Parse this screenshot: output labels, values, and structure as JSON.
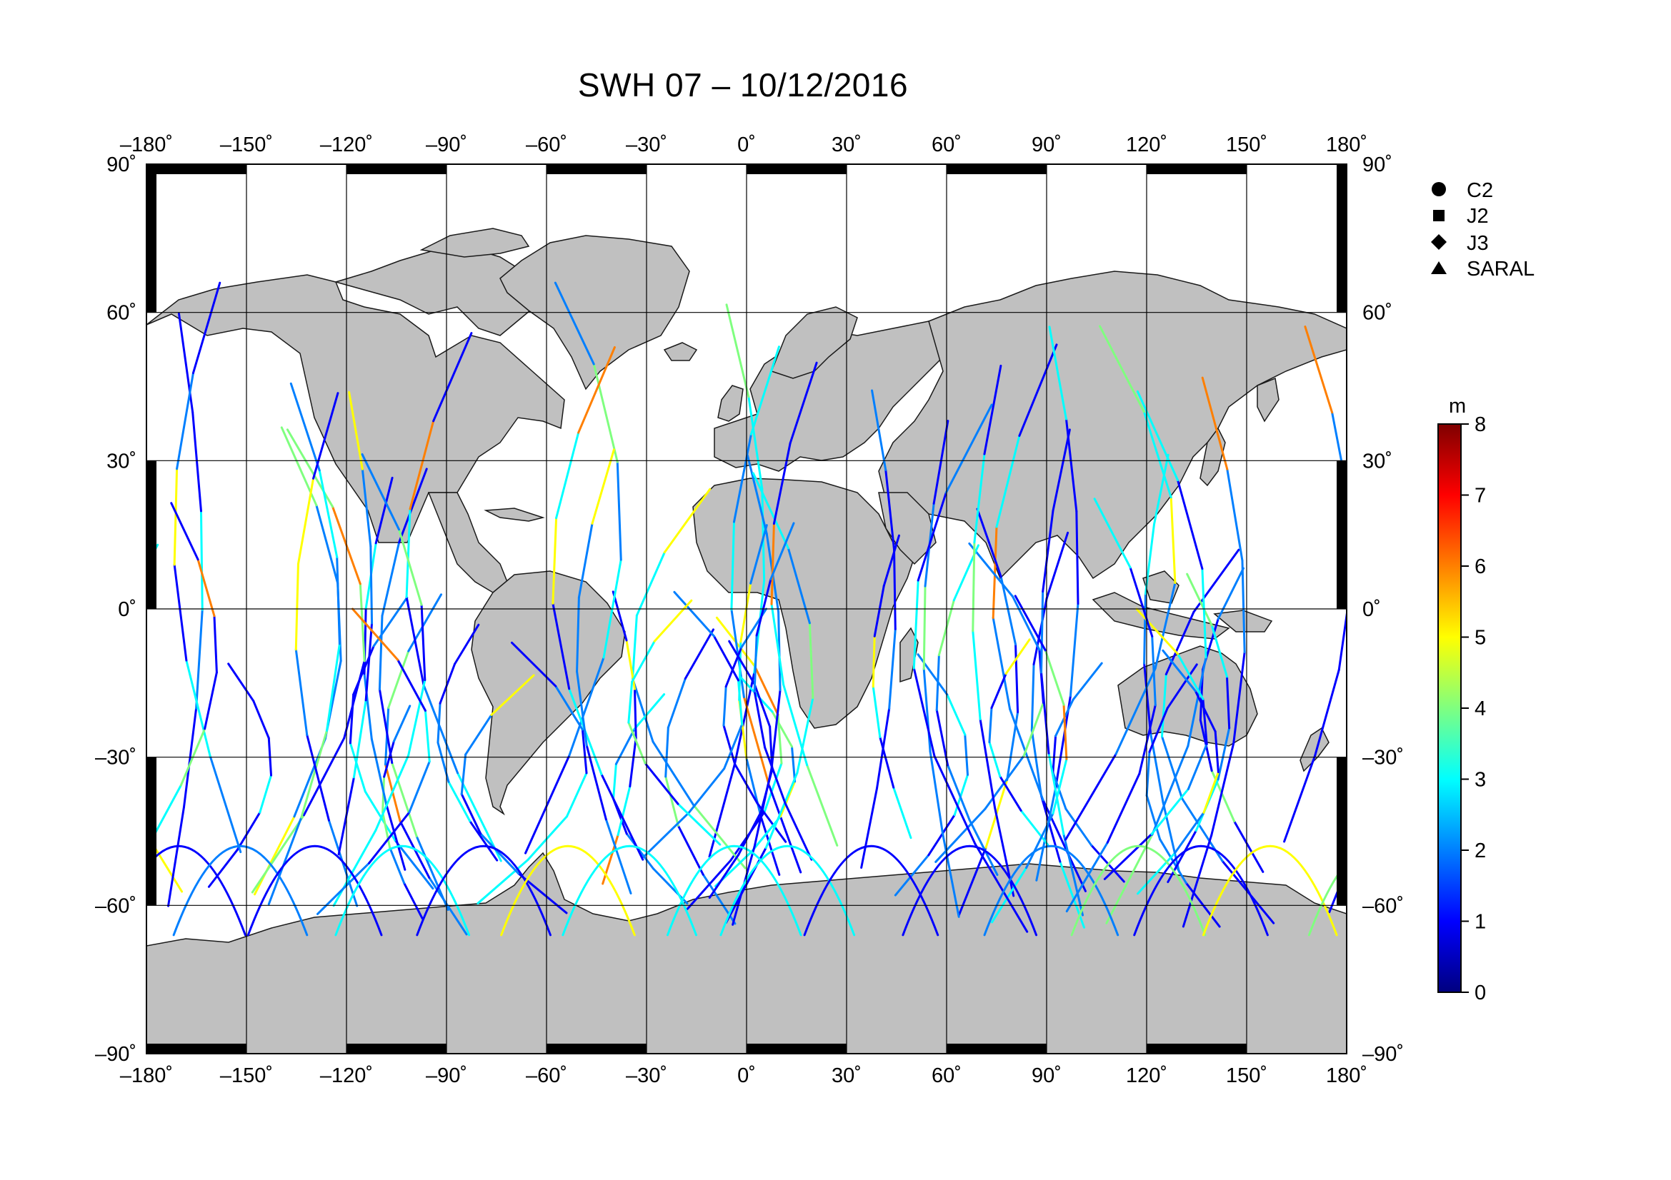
{
  "title": "SWH 07 – 10/12/2016",
  "map": {
    "projection": "equirectangular",
    "lon_range": [
      -180,
      180
    ],
    "lat_range": [
      -90,
      90
    ],
    "gridline_step_deg": 30,
    "land_color": "#c0c0c0",
    "ocean_color": "#ffffff",
    "grid_color": "#000000"
  },
  "axes": {
    "lon_ticks": [
      "–180˚",
      "–150˚",
      "–120˚",
      "–90˚",
      "–60˚",
      "–30˚",
      "0˚",
      "30˚",
      "60˚",
      "90˚",
      "120˚",
      "150˚",
      "180˚"
    ],
    "lat_ticks": [
      "90˚",
      "60˚",
      "30˚",
      "0˚",
      "–30˚",
      "–60˚",
      "–90˚"
    ]
  },
  "legend": {
    "items": [
      {
        "label": "C2",
        "symbol": "circle"
      },
      {
        "label": "J2",
        "symbol": "square"
      },
      {
        "label": "J3",
        "symbol": "diamond"
      },
      {
        "label": "SARAL",
        "symbol": "triangle"
      }
    ]
  },
  "colorbar": {
    "unit": "m",
    "min": 0,
    "max": 8,
    "ticks": [
      "0",
      "1",
      "2",
      "3",
      "4",
      "5",
      "6",
      "7",
      "8"
    ],
    "colormap": "jet",
    "colors": [
      "#00007f",
      "#0000ff",
      "#007fff",
      "#00ffff",
      "#7fff7f",
      "#ffff00",
      "#ff7f00",
      "#ff0000",
      "#7f0000"
    ]
  }
}
